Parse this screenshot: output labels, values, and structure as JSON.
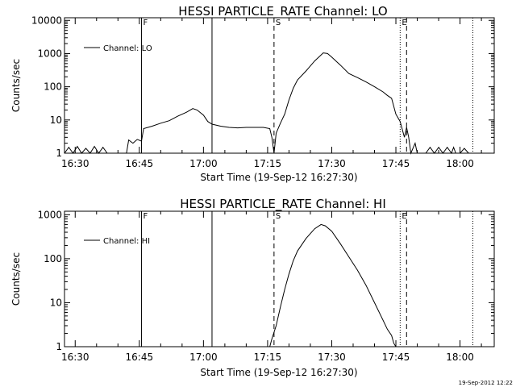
{
  "timestamp": "19-Sep-2012 12:22",
  "chart_data": [
    {
      "type": "line",
      "title": "HESSI PARTICLE_RATE Channel: LO",
      "xlabel": "Start Time (19-Sep-12 16:27:30)",
      "ylabel": "Counts/sec",
      "ylog": true,
      "ylim": [
        1,
        12000
      ],
      "xlim": [
        "16:27:30",
        "18:08:00"
      ],
      "xticks": [
        "16:30",
        "16:45",
        "17:00",
        "17:15",
        "17:30",
        "17:45",
        "18:00"
      ],
      "yticks": [
        "1",
        "10",
        "100",
        "1000",
        "10000"
      ],
      "legend": "top-left",
      "series": [
        {
          "name": "Channel: LO",
          "points": [
            [
              "16:27:30",
              1
            ],
            [
              "16:28:30",
              1.5
            ],
            [
              "16:29:30",
              1
            ],
            [
              "16:30:30",
              1.6
            ],
            [
              "16:31:30",
              1
            ],
            [
              "16:32:30",
              1.4
            ],
            [
              "16:33:30",
              1
            ],
            [
              "16:34:30",
              1.6
            ],
            [
              "16:35:30",
              1
            ],
            [
              "16:36:30",
              1.5
            ],
            [
              "16:37:30",
              1
            ],
            [
              "16:42:00",
              1
            ],
            [
              "16:42:30",
              2.5
            ],
            [
              "16:43:30",
              2.0
            ],
            [
              "16:44:30",
              2.6
            ],
            [
              "16:45:30",
              2.3
            ],
            [
              "16:46:00",
              5.5
            ],
            [
              "16:48:00",
              6.5
            ],
            [
              "16:50:00",
              8
            ],
            [
              "16:52:00",
              9.5
            ],
            [
              "16:54:00",
              13
            ],
            [
              "16:56:00",
              17
            ],
            [
              "16:57:30",
              22
            ],
            [
              "16:58:30",
              20
            ],
            [
              "17:00:00",
              14
            ],
            [
              "17:01:00",
              9
            ],
            [
              "17:02:00",
              7.5
            ],
            [
              "17:04:00",
              6.5
            ],
            [
              "17:06:00",
              6
            ],
            [
              "17:08:00",
              5.8
            ],
            [
              "17:10:00",
              6
            ],
            [
              "17:12:00",
              6
            ],
            [
              "17:14:00",
              6
            ],
            [
              "17:15:30",
              5.5
            ],
            [
              "17:16:00",
              3
            ],
            [
              "17:16:30",
              1
            ],
            [
              "17:17:00",
              4
            ],
            [
              "17:18:00",
              8
            ],
            [
              "17:19:00",
              15
            ],
            [
              "17:20:00",
              40
            ],
            [
              "17:21:00",
              90
            ],
            [
              "17:22:00",
              160
            ],
            [
              "17:24:00",
              300
            ],
            [
              "17:26:00",
              600
            ],
            [
              "17:28:00",
              1050
            ],
            [
              "17:29:00",
              1000
            ],
            [
              "17:30:00",
              780
            ],
            [
              "17:32:00",
              450
            ],
            [
              "17:34:00",
              250
            ],
            [
              "17:36:00",
              190
            ],
            [
              "17:38:00",
              140
            ],
            [
              "17:40:00",
              100
            ],
            [
              "17:42:00",
              70
            ],
            [
              "17:43:00",
              55
            ],
            [
              "17:44:00",
              45
            ],
            [
              "17:45:00",
              15
            ],
            [
              "17:46:00",
              9
            ],
            [
              "17:47:00",
              3
            ],
            [
              "17:47:30",
              6
            ],
            [
              "17:48:00",
              3
            ],
            [
              "17:48:30",
              1
            ],
            [
              "17:49:30",
              2
            ],
            [
              "17:50:00",
              1
            ],
            [
              "17:52:00",
              1
            ],
            [
              "17:53:00",
              1.5
            ],
            [
              "17:54:00",
              1
            ],
            [
              "17:55:00",
              1.5
            ],
            [
              "17:56:00",
              1
            ],
            [
              "17:57:00",
              1.5
            ],
            [
              "17:58:00",
              1
            ],
            [
              "17:58:30",
              1.5
            ],
            [
              "17:59:00",
              1
            ],
            [
              "18:00:00",
              1
            ],
            [
              "18:01:00",
              1.4
            ],
            [
              "18:02:00",
              1
            ]
          ]
        }
      ]
    },
    {
      "type": "line",
      "title": "HESSI PARTICLE_RATE Channel: HI",
      "xlabel": "Start Time (19-Sep-12 16:27:30)",
      "ylabel": "Counts/sec",
      "ylog": true,
      "ylim": [
        1,
        1200
      ],
      "xlim": [
        "16:27:30",
        "18:08:00"
      ],
      "xticks": [
        "16:30",
        "16:45",
        "17:00",
        "17:15",
        "17:30",
        "17:45",
        "18:00"
      ],
      "yticks": [
        "1",
        "10",
        "100",
        "1000"
      ],
      "legend": "top-left",
      "series": [
        {
          "name": "Channel: HI",
          "points": [
            [
              "17:15:30",
              1
            ],
            [
              "17:16:00",
              1.5
            ],
            [
              "17:17:00",
              3
            ],
            [
              "17:18:00",
              8
            ],
            [
              "17:19:00",
              20
            ],
            [
              "17:20:00",
              45
            ],
            [
              "17:21:00",
              90
            ],
            [
              "17:22:00",
              150
            ],
            [
              "17:24:00",
              290
            ],
            [
              "17:26:00",
              480
            ],
            [
              "17:27:30",
              600
            ],
            [
              "17:28:30",
              560
            ],
            [
              "17:30:00",
              420
            ],
            [
              "17:32:00",
              220
            ],
            [
              "17:34:00",
              110
            ],
            [
              "17:36:00",
              55
            ],
            [
              "17:38:00",
              25
            ],
            [
              "17:40:00",
              10
            ],
            [
              "17:42:00",
              4
            ],
            [
              "17:43:00",
              2.5
            ],
            [
              "17:44:00",
              1.8
            ],
            [
              "17:44:30",
              1.2
            ],
            [
              "17:45:00",
              1
            ]
          ]
        }
      ]
    }
  ],
  "markers": [
    {
      "label": "F",
      "time": "16:45:30",
      "style": "solid"
    },
    {
      "label": "",
      "time": "17:02:00",
      "style": "solid"
    },
    {
      "label": "S",
      "time": "17:16:30",
      "style": "dashed"
    },
    {
      "label": "E",
      "time": "17:46:00",
      "style": "dotted"
    },
    {
      "label": "",
      "time": "17:47:30",
      "style": "dashed"
    },
    {
      "label": "",
      "time": "18:03:00",
      "style": "dotted"
    }
  ]
}
